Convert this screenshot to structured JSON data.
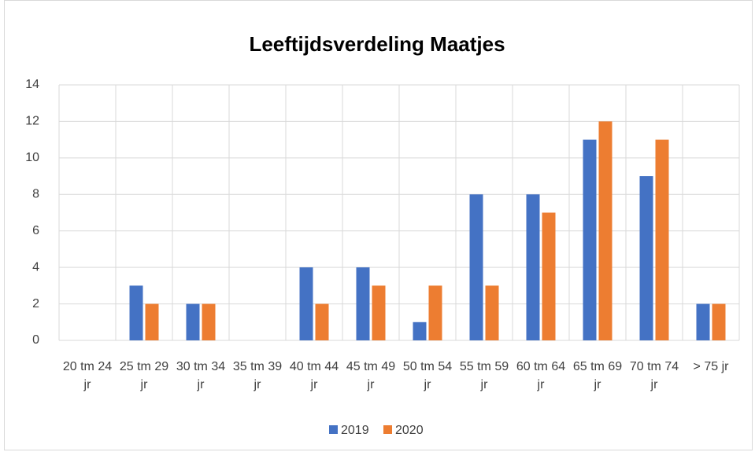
{
  "chart_data": {
    "type": "bar",
    "title": "Leeftijdsverdeling Maatjes",
    "categories": [
      "20 tm 24 jr",
      "25 tm 29 jr",
      "30 tm 34 jr",
      "35 tm 39 jr",
      "40 tm 44 jr",
      "45 tm 49 jr",
      "50 tm 54 jr",
      "55 tm 59 jr",
      "60 tm 64 jr",
      "65 tm 69 jr",
      "70 tm 74 jr",
      "> 75 jr"
    ],
    "series": [
      {
        "name": "2019",
        "color": "#4472c4",
        "values": [
          0,
          3,
          2,
          0,
          4,
          4,
          1,
          8,
          8,
          11,
          9,
          2
        ]
      },
      {
        "name": "2020",
        "color": "#ed7d31",
        "values": [
          0,
          2,
          2,
          0,
          2,
          3,
          3,
          3,
          7,
          12,
          11,
          2
        ]
      }
    ],
    "ylim": [
      0,
      14
    ],
    "yticks": [
      0,
      2,
      4,
      6,
      8,
      10,
      12,
      14
    ],
    "grid": true,
    "legend": "bottom"
  }
}
